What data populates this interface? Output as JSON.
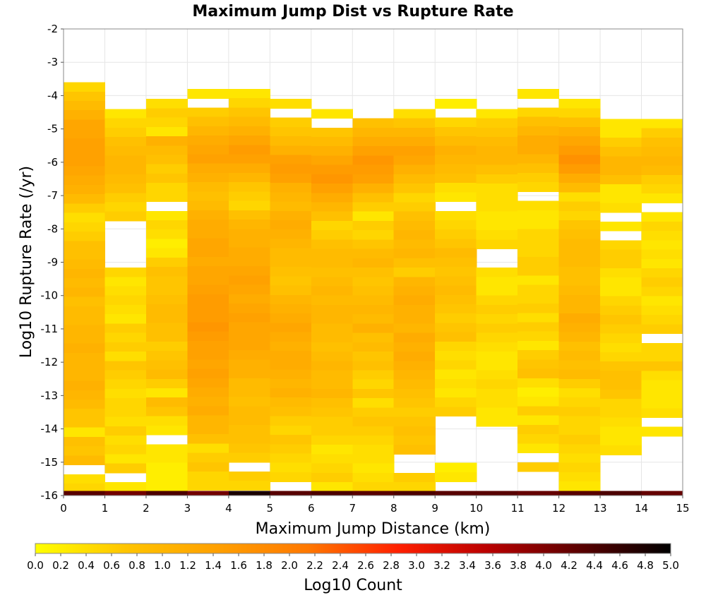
{
  "chart_data": {
    "type": "heatmap",
    "title": "Maximum Jump Dist vs Rupture Rate",
    "xlabel": "Maximum Jump Distance (km)",
    "ylabel": "Log10 Rupture Rate (/yr)",
    "xlim": [
      0,
      15
    ],
    "ylim": [
      -16,
      -2
    ],
    "x_bin_width": 1,
    "y_bin_height": 0.28,
    "x_ticks": [
      "0",
      "1",
      "2",
      "3",
      "4",
      "5",
      "6",
      "7",
      "8",
      "9",
      "10",
      "11",
      "12",
      "13",
      "14",
      "15"
    ],
    "y_ticks": [
      "-2",
      "-3",
      "-4",
      "-5",
      "-6",
      "-7",
      "-8",
      "-9",
      "-10",
      "-11",
      "-12",
      "-13",
      "-14",
      "-15",
      "-16"
    ],
    "grid": true,
    "colorbar": {
      "label": "Log10 Count",
      "min": 0.0,
      "max": 5.0,
      "ticks": [
        "0.0",
        "0.2",
        "0.4",
        "0.6",
        "0.8",
        "1.0",
        "1.2",
        "1.4",
        "1.6",
        "1.8",
        "2.0",
        "2.2",
        "2.4",
        "2.6",
        "2.8",
        "3.0",
        "3.2",
        "3.4",
        "3.6",
        "3.8",
        "4.0",
        "4.2",
        "4.4",
        "4.6",
        "4.8",
        "5.0"
      ],
      "colors": [
        "#ffff00",
        "#ffc400",
        "#ffa000",
        "#ff7800",
        "#ff2000",
        "#b80000",
        "#5a0000",
        "#000000"
      ]
    },
    "columns": [
      {
        "x": 0,
        "y_top": -3.6,
        "values": [
          0.5,
          0.7,
          0.9,
          1.1,
          1.3,
          1.3,
          1.4,
          1.4,
          1.4,
          1.3,
          1.2,
          1.1,
          0.9,
          0.6,
          0.4,
          0.5,
          0.6,
          0.8,
          0.8,
          0.9,
          1.0,
          0.9,
          1.0,
          0.8,
          0.9,
          0.9,
          1.0,
          1.0,
          1.1,
          1.0,
          1.0,
          1.0,
          1.1,
          1.0,
          0.9,
          0.7,
          0.7,
          0.3,
          0.8,
          0.7,
          0.9,
          null,
          0.4,
          0.5,
          0.3,
          0.2,
          0.3,
          null,
          0.5,
          null,
          0.3,
          null,
          null,
          0.2,
          0.4,
          0.2,
          0.3,
          0.4,
          0.3
        ]
      },
      {
        "x": 1,
        "y_top": -4.4,
        "values": [
          0.3,
          0.5,
          0.6,
          0.8,
          0.9,
          1.0,
          1.0,
          0.9,
          0.8,
          0.6,
          0.5,
          0.6,
          null,
          null,
          null,
          null,
          null,
          0.5,
          0.3,
          0.4,
          0.5,
          0.4,
          0.3,
          0.6,
          0.5,
          0.6,
          0.4,
          0.7,
          0.6,
          0.5,
          0.4,
          0.5,
          0.5,
          0.4,
          0.6,
          0.4,
          0.5,
          0.3,
          0.6,
          null,
          0.3,
          0.4,
          null,
          null,
          0.4,
          null,
          null,
          null,
          null,
          null,
          null,
          null,
          null,
          0.3
        ]
      },
      {
        "x": 2,
        "y_top": -4.1,
        "values": [
          0.4,
          0.6,
          0.5,
          0.3,
          1.1,
          0.9,
          0.8,
          0.6,
          0.7,
          0.5,
          0.5,
          null,
          0.3,
          0.5,
          0.4,
          0.2,
          0.3,
          0.6,
          0.8,
          0.7,
          0.7,
          0.8,
          0.9,
          0.9,
          0.8,
          0.8,
          0.6,
          0.7,
          0.8,
          0.9,
          0.6,
          0.3,
          0.9,
          0.7,
          0.4,
          0.3,
          null,
          0.3,
          0.3,
          0.2,
          0.2,
          0.2,
          0.2,
          0.2,
          0.2,
          0.2,
          null,
          null,
          null,
          null,
          null,
          null,
          null,
          null,
          null,
          null,
          null,
          null,
          null,
          null
        ]
      },
      {
        "x": 3,
        "y_top": -3.8,
        "values": [
          0.3,
          null,
          0.6,
          0.8,
          1.0,
          1.2,
          1.3,
          1.4,
          1.2,
          1.1,
          0.9,
          0.8,
          0.9,
          1.1,
          1.2,
          1.2,
          1.3,
          1.3,
          1.2,
          1.3,
          1.3,
          1.4,
          1.5,
          1.5,
          1.5,
          1.6,
          1.5,
          1.4,
          1.4,
          1.3,
          1.4,
          1.3,
          1.2,
          1.1,
          1.2,
          1.0,
          1.0,
          0.8,
          0.4,
          0.6,
          0.7,
          0.5,
          0.5,
          0.4,
          0.6,
          0.7,
          0.3,
          0.4,
          0.4,
          0.5,
          null,
          null,
          null,
          null,
          null
        ]
      },
      {
        "x": 4,
        "y_top": -3.8,
        "values": [
          0.3,
          0.5,
          0.7,
          0.9,
          1.1,
          1.3,
          1.5,
          1.4,
          1.2,
          1.0,
          0.7,
          0.6,
          0.5,
          0.8,
          1.0,
          1.1,
          1.1,
          1.2,
          1.2,
          1.3,
          1.4,
          1.3,
          1.2,
          1.3,
          1.4,
          1.3,
          1.3,
          1.3,
          1.2,
          1.1,
          1.1,
          0.9,
          0.9,
          0.8,
          0.9,
          0.9,
          0.8,
          0.8,
          0.7,
          0.6,
          null,
          0.6,
          0.5,
          0.3,
          0.3,
          0.4,
          0.7,
          0.5,
          0.3,
          0.3,
          0.4,
          null,
          null,
          null,
          0.3
        ]
      },
      {
        "x": 5,
        "y_top": -4.1,
        "values": [
          0.4,
          null,
          0.6,
          0.7,
          0.9,
          1.1,
          1.4,
          1.5,
          1.4,
          1.1,
          1.0,
          0.9,
          1.1,
          1.2,
          1.1,
          1.0,
          0.9,
          0.9,
          0.8,
          0.7,
          0.8,
          1.0,
          1.1,
          1.2,
          1.3,
          1.2,
          1.1,
          1.2,
          1.2,
          1.1,
          1.0,
          1.1,
          0.9,
          0.8,
          0.6,
          0.5,
          0.7,
          0.6,
          0.5,
          0.4,
          0.5,
          null,
          0.4,
          0.2,
          null,
          null,
          null,
          null,
          null,
          null,
          null,
          null,
          null,
          null,
          null,
          null,
          null,
          null,
          null,
          null,
          null,
          null
        ]
      },
      {
        "x": 6,
        "y_top": -4.4,
        "values": [
          0.3,
          null,
          0.7,
          0.9,
          1.1,
          1.3,
          1.5,
          1.6,
          1.4,
          1.2,
          1.0,
          0.8,
          0.5,
          0.6,
          0.8,
          0.9,
          0.9,
          0.8,
          0.9,
          1.0,
          0.9,
          1.0,
          1.0,
          0.9,
          0.9,
          0.8,
          0.9,
          1.0,
          0.9,
          0.9,
          1.0,
          0.8,
          0.7,
          0.6,
          0.6,
          0.5,
          0.3,
          0.4,
          0.5,
          0.6,
          0.3,
          0.3,
          0.3,
          0.2,
          null,
          0.3,
          null,
          null,
          null,
          null,
          null,
          null,
          null,
          null,
          null,
          null,
          null,
          null,
          null,
          null,
          null,
          null
        ]
      },
      {
        "x": 7,
        "y_top": -4.4,
        "values": [
          null,
          0.8,
          1.0,
          1.2,
          1.4,
          1.6,
          1.5,
          1.4,
          1.1,
          0.8,
          0.6,
          0.3,
          0.6,
          0.5,
          0.7,
          0.9,
          1.0,
          0.8,
          0.7,
          0.8,
          0.9,
          1.0,
          0.9,
          1.1,
          0.8,
          0.9,
          0.7,
          0.8,
          0.6,
          0.5,
          0.7,
          0.4,
          0.6,
          0.7,
          0.6,
          0.5,
          0.4,
          0.4,
          0.3,
          0.4,
          0.5,
          0.4,
          null,
          null,
          null,
          null,
          null,
          null,
          null,
          null,
          null,
          null,
          null,
          null,
          null,
          null,
          null,
          0.3,
          0.2
        ]
      },
      {
        "x": 8,
        "y_top": -4.4,
        "values": [
          0.4,
          0.7,
          1.0,
          1.2,
          1.4,
          1.3,
          1.1,
          0.9,
          0.7,
          0.5,
          0.6,
          0.8,
          0.9,
          1.0,
          0.9,
          1.0,
          0.8,
          0.6,
          1.0,
          1.1,
          1.2,
          1.1,
          1.1,
          1.0,
          1.2,
          1.1,
          1.2,
          1.1,
          1.0,
          0.9,
          0.8,
          0.7,
          0.6,
          0.7,
          0.8,
          0.7,
          0.8,
          null,
          null,
          0.6,
          0.5,
          0.4,
          0.7,
          0.5,
          0.4,
          null,
          0.3,
          0.2,
          null,
          null,
          null,
          null,
          null,
          null,
          null,
          null,
          null,
          null,
          null
        ]
      },
      {
        "x": 9,
        "y_top": -4.1,
        "values": [
          0.2,
          null,
          0.5,
          0.7,
          0.9,
          1.1,
          1.0,
          0.9,
          0.8,
          0.4,
          0.3,
          null,
          0.4,
          0.5,
          0.6,
          0.7,
          0.9,
          0.8,
          0.7,
          0.8,
          0.9,
          0.8,
          0.7,
          0.6,
          0.7,
          0.8,
          0.5,
          0.4,
          0.5,
          0.3,
          0.4,
          0.3,
          0.5,
          0.6,
          null,
          null,
          null,
          null,
          null,
          0.2,
          0.3,
          null,
          null,
          null,
          null,
          null,
          null,
          null,
          null,
          null,
          null,
          null,
          null,
          null,
          null,
          null,
          null,
          null
        ]
      },
      {
        "x": 10,
        "y_top": -4.4,
        "values": [
          0.3,
          0.6,
          0.7,
          0.9,
          1.0,
          1.0,
          0.8,
          0.6,
          0.4,
          0.4,
          0.4,
          0.3,
          0.3,
          0.4,
          0.5,
          null,
          null,
          0.4,
          0.3,
          0.3,
          0.5,
          0.6,
          0.5,
          0.6,
          0.5,
          0.4,
          0.3,
          0.3,
          0.4,
          0.5,
          0.4,
          0.4,
          0.3,
          0.3,
          null,
          null,
          null,
          null,
          null,
          null,
          null,
          null,
          null,
          null,
          null,
          null,
          null,
          null,
          null,
          null,
          null,
          null,
          null,
          null,
          null,
          null,
          null,
          null,
          null,
          null,
          null
        ]
      },
      {
        "x": 11,
        "y_top": -3.8,
        "values": [
          0.3,
          null,
          0.5,
          0.8,
          1.0,
          1.2,
          1.2,
          1.0,
          0.8,
          0.6,
          0.5,
          null,
          0.4,
          0.3,
          0.3,
          0.5,
          0.5,
          0.5,
          0.6,
          0.6,
          0.3,
          0.5,
          0.5,
          0.6,
          0.4,
          0.6,
          0.5,
          0.3,
          0.6,
          0.7,
          0.8,
          0.4,
          0.2,
          0.3,
          0.6,
          0.3,
          0.6,
          0.5,
          0.3,
          null,
          0.6,
          null,
          null,
          null,
          null,
          null,
          null,
          null,
          null,
          null,
          null,
          null,
          null,
          null,
          null,
          null,
          null,
          null,
          null
        ]
      },
      {
        "x": 12,
        "y_top": -4.1,
        "values": [
          0.3,
          0.5,
          0.8,
          1.1,
          1.3,
          1.5,
          1.7,
          1.5,
          1.2,
          0.9,
          0.4,
          0.6,
          0.5,
          0.7,
          0.8,
          0.9,
          0.9,
          0.9,
          0.8,
          0.8,
          0.9,
          1.0,
          1.0,
          1.2,
          1.1,
          1.0,
          0.8,
          0.9,
          0.8,
          0.9,
          0.6,
          0.4,
          0.5,
          0.6,
          0.5,
          0.5,
          0.6,
          0.5,
          0.4,
          0.5,
          0.4,
          0.3,
          0.3,
          0.2,
          0.3,
          null,
          null,
          null,
          null,
          null,
          null,
          null,
          null,
          null,
          null,
          null,
          null
        ]
      },
      {
        "x": 13,
        "y_top": -4.7,
        "values": [
          0.3,
          0.3,
          0.6,
          0.8,
          1.0,
          1.0,
          0.8,
          0.3,
          0.3,
          0.4,
          null,
          0.3,
          null,
          0.5,
          0.6,
          0.6,
          0.4,
          0.3,
          0.3,
          0.5,
          0.6,
          0.7,
          0.6,
          0.5,
          0.4,
          0.5,
          0.7,
          0.8,
          0.8,
          0.7,
          0.5,
          0.5,
          0.4,
          0.3,
          0.3,
          0.4,
          null,
          null,
          null,
          null,
          null,
          null,
          null,
          null,
          null,
          null,
          null,
          null,
          null,
          null,
          null,
          null,
          null,
          null,
          null,
          null,
          null
        ]
      },
      {
        "x": 14,
        "y_top": -4.7,
        "values": [
          0.3,
          0.6,
          0.8,
          0.9,
          1.0,
          0.9,
          0.6,
          0.5,
          0.3,
          null,
          0.3,
          0.5,
          0.4,
          0.3,
          0.4,
          0.3,
          0.5,
          0.6,
          0.5,
          0.3,
          0.4,
          0.5,
          0.6,
          null,
          0.5,
          0.5,
          0.7,
          0.4,
          0.3,
          0.3,
          0.3,
          0.4,
          null,
          0.3,
          null,
          null,
          null,
          null,
          null,
          null,
          null,
          null,
          null,
          null,
          null,
          null,
          null,
          null,
          null,
          null,
          null,
          null
        ]
      }
    ],
    "bottom_row": {
      "y_top": -15.86,
      "values": [
        4.3,
        4.1,
        4.4,
        4.1,
        4.8,
        4.3,
        4.4,
        4.3,
        4.4,
        4.3,
        4.3,
        4.2,
        4.3,
        4.4,
        4.2
      ]
    }
  }
}
